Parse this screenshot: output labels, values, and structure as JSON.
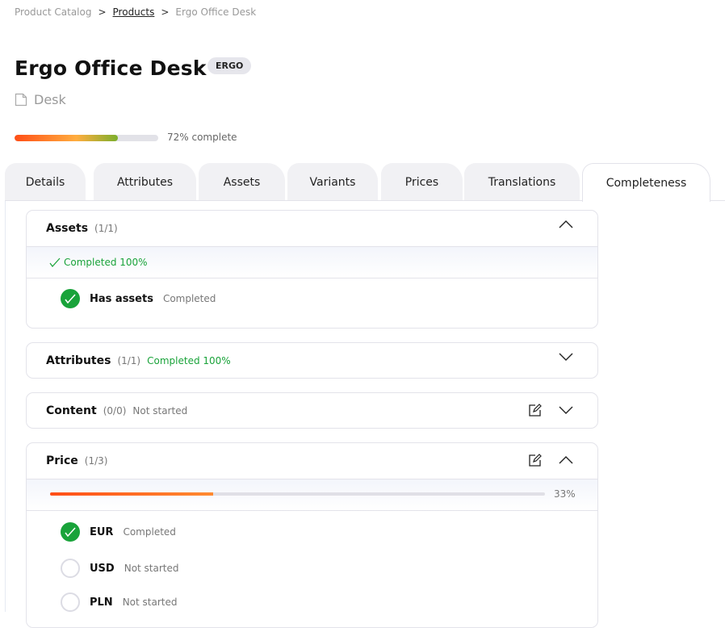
{
  "breadcrumb": {
    "items": [
      "Product Catalog",
      "Products",
      "Ergo Office Desk"
    ],
    "separator": ">"
  },
  "product": {
    "title": "Ergo Office Desk",
    "badge": "ERGO",
    "family": "Desk",
    "progress_percent": 72,
    "progress_label": "72% complete"
  },
  "tabs": [
    {
      "label": "Details"
    },
    {
      "label": "Attributes"
    },
    {
      "label": "Assets"
    },
    {
      "label": "Variants"
    },
    {
      "label": "Prices"
    },
    {
      "label": "Translations"
    },
    {
      "label": "Completeness",
      "active": true
    }
  ],
  "sections": {
    "assets": {
      "title": "Assets",
      "count": "(1/1)",
      "summary": "Completed 100%",
      "items": [
        {
          "label": "Has assets",
          "status": "Completed"
        }
      ]
    },
    "attributes": {
      "title": "Attributes",
      "count": "(1/1)",
      "status": "Completed 100%"
    },
    "content": {
      "title": "Content",
      "count": "(0/0)",
      "status": "Not started"
    },
    "price": {
      "title": "Price",
      "count": "(1/3)",
      "progress_percent": 33,
      "progress_label": "33%",
      "items": [
        {
          "label": "EUR",
          "status": "Completed"
        },
        {
          "label": "USD",
          "status": "Not started"
        },
        {
          "label": "PLN",
          "status": "Not started"
        }
      ]
    }
  },
  "colors": {
    "success": "#19a33a",
    "accent": "#ff4e17"
  }
}
